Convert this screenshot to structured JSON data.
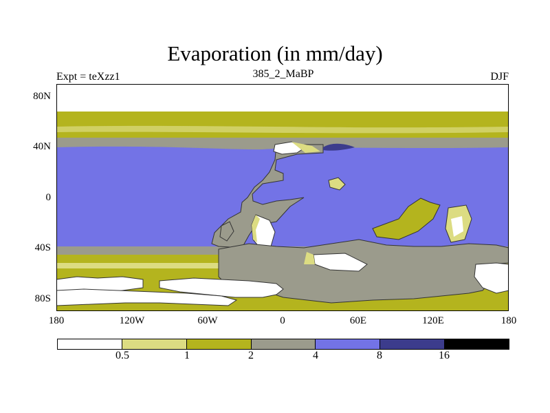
{
  "title": "Evaporation (in mm/day)",
  "left_label": "Expt = teXzz1",
  "center_label": "385_2_MaBP",
  "right_label": "DJF",
  "y_ticks": [
    "80N",
    "40N",
    "0",
    "40S",
    "80S"
  ],
  "x_ticks": [
    "180",
    "120W",
    "60W",
    "0",
    "60E",
    "120E",
    "180"
  ],
  "colorbar": {
    "labels": [
      "0.5",
      "1",
      "2",
      "4",
      "8",
      "16"
    ],
    "colors": [
      "#ffffff",
      "#dcdc82",
      "#b4b41e",
      "#9b9b8c",
      "#7373e6",
      "#3c3c8c",
      "#000000"
    ]
  },
  "map_colors": {
    "white": "#ffffff",
    "pale_yellow": "#dcdc82",
    "olive": "#b4b41e",
    "gray": "#9b9b8c",
    "blue": "#7373e6",
    "dark_blue": "#3c3c8c"
  }
}
